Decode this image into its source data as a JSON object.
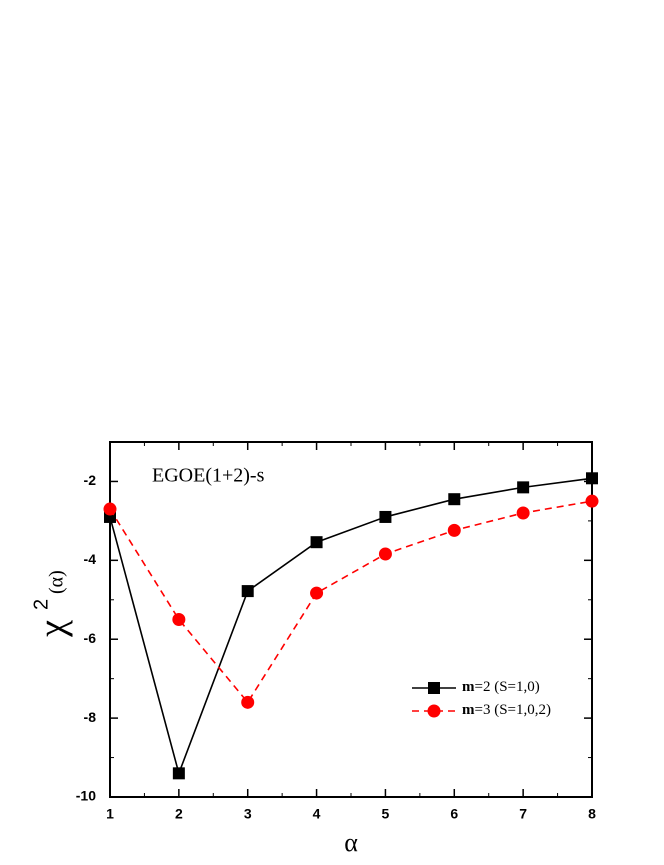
{
  "chart_data": {
    "type": "line",
    "annotation": "EGOE(1+2)-s",
    "xlabel": "α",
    "ylabel": "χ",
    "ylabel_sup": "2",
    "ylabel_arg": "(α)",
    "x": [
      1,
      2,
      3,
      4,
      5,
      6,
      7,
      8
    ],
    "series": [
      {
        "name": "m=2 (S=1,0)",
        "color": "#000000",
        "marker": "square",
        "dash": false,
        "values": [
          -2.9,
          -9.4,
          -4.78,
          -3.54,
          -2.9,
          -2.45,
          -2.15,
          -1.92
        ]
      },
      {
        "name": "m=3 (S=1,0,2)",
        "color": "#ff0000",
        "marker": "circle",
        "dash": true,
        "values": [
          -2.7,
          -5.5,
          -7.6,
          -4.83,
          -3.84,
          -3.24,
          -2.8,
          -2.5
        ]
      }
    ],
    "xlim": [
      1,
      8
    ],
    "xticks": [
      1,
      2,
      3,
      4,
      5,
      6,
      7,
      8
    ],
    "ylim": [
      -10,
      -1
    ],
    "yticks": [
      -10,
      -8,
      -6,
      -4,
      -2
    ],
    "legend": "lower-right",
    "grid": false
  }
}
